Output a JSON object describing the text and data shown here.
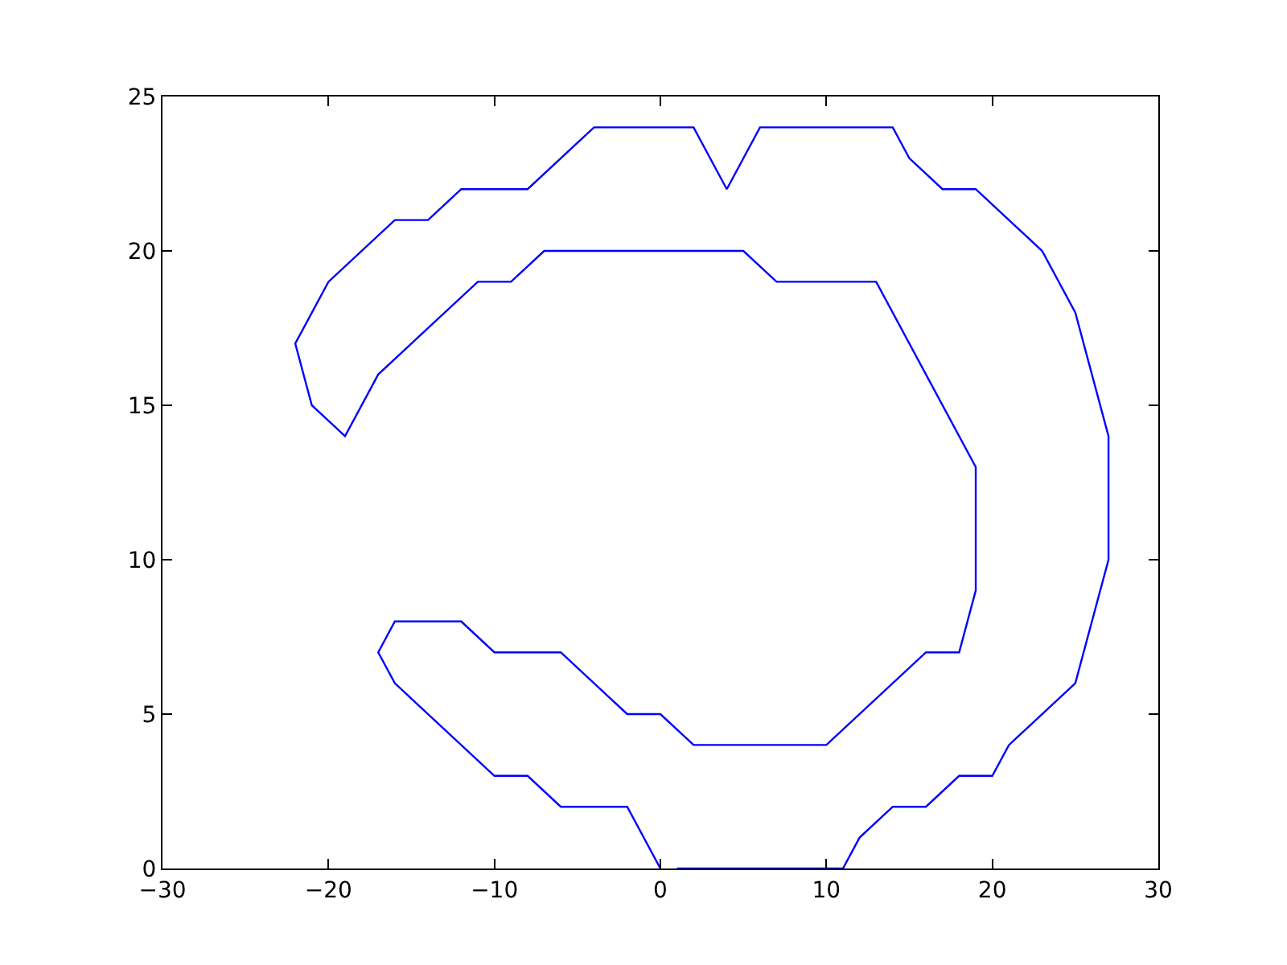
{
  "chart_data": {
    "type": "line",
    "x": [
      1,
      11,
      12,
      14,
      16,
      18,
      20,
      21,
      25,
      27,
      27,
      25,
      23,
      19,
      17,
      15,
      14,
      6,
      4,
      2,
      -4,
      -8,
      -12,
      -14,
      -16,
      -20,
      -22,
      -21,
      -19,
      -17,
      -11,
      -9,
      -7,
      5,
      7,
      13,
      19,
      19,
      18,
      16,
      10,
      2,
      0,
      -2,
      -6,
      -10,
      -12,
      -16,
      -17,
      -16,
      -10,
      -8,
      -6,
      -2,
      0
    ],
    "series": [
      {
        "color": "#0000ff",
        "values": [
          0,
          0,
          1,
          2,
          2,
          3,
          3,
          4,
          6,
          10,
          14,
          18,
          20,
          22,
          22,
          23,
          24,
          24,
          22,
          24,
          24,
          22,
          22,
          21,
          21,
          19,
          17,
          15,
          14,
          16,
          19,
          19,
          20,
          20,
          19,
          19,
          13,
          9,
          7,
          7,
          4,
          4,
          5,
          5,
          7,
          7,
          8,
          8,
          7,
          6,
          3,
          3,
          2,
          2,
          0
        ]
      }
    ],
    "xlim": [
      -30,
      30
    ],
    "ylim": [
      0,
      25
    ],
    "xticks": [
      -30,
      -20,
      -10,
      0,
      10,
      20,
      30
    ],
    "yticks": [
      0,
      5,
      10,
      15,
      20,
      25
    ],
    "marker": "none",
    "line_style": "solid"
  }
}
